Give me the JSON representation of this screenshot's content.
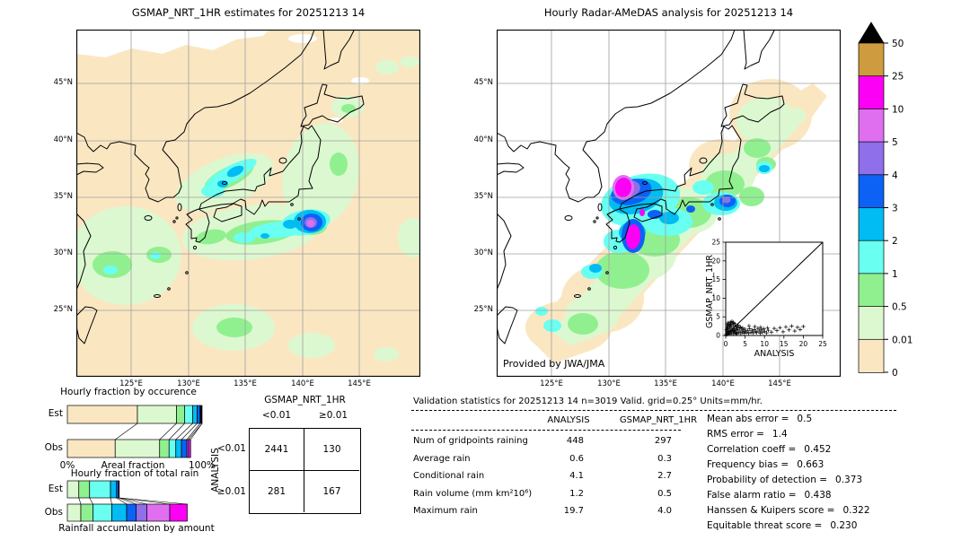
{
  "chart_data": {
    "figure": "GSMAP_NRT_1HR vs Radar-AMeDAS hourly rain validation dashboard",
    "maps": {
      "left": {
        "title": "GSMAP_NRT_1HR estimates for 20251213 14"
      },
      "right": {
        "title": "Hourly Radar-AMeDAS analysis for 20251213 14",
        "credit": "Provided by JWA/JMA"
      },
      "lat_ticks": [
        "45°N",
        "40°N",
        "35°N",
        "30°N",
        "25°N"
      ],
      "lon_ticks": [
        "125°E",
        "130°E",
        "135°E",
        "140°E",
        "145°E"
      ],
      "units": "mm/hr"
    },
    "colorbar": {
      "levels_bottom_to_top": [
        "0",
        "0.01",
        "0.5",
        "1",
        "2",
        "3",
        "4",
        "5",
        "10",
        "25",
        "50"
      ],
      "labels_top_to_bottom": [
        "50",
        "25",
        "10",
        "5",
        "4",
        "3",
        "2",
        "1",
        "0.5",
        "0.01",
        "0"
      ],
      "colors_top_to_bottom": [
        "#CE9C3E",
        "#FB00F5",
        "#DF6FEF",
        "#8F6FEA",
        "#0B62F5",
        "#00BCF2",
        "#69FFF1",
        "#90F090",
        "#DCF8D0",
        "#FAE7C2"
      ],
      "overflow_color": "#000000"
    },
    "occurrence_bars": {
      "type": "bar",
      "title": "Hourly fraction by occurence",
      "rows": [
        "Est",
        "Obs"
      ],
      "x_left_label": "0%",
      "x_center_label": "Areal fraction",
      "x_right_label": "100%",
      "est_segments": [
        {
          "color": "#FAE7C2",
          "frac": 0.52
        },
        {
          "color": "#DCF8D0",
          "frac": 0.29
        },
        {
          "color": "#90F090",
          "frac": 0.06
        },
        {
          "color": "#69FFF1",
          "frac": 0.06
        },
        {
          "color": "#00BCF2",
          "frac": 0.033
        },
        {
          "color": "#0B62F5",
          "frac": 0.022
        },
        {
          "color": "#000000",
          "frac": 0.015
        }
      ],
      "obs_segments": [
        {
          "color": "#FAE7C2",
          "frac": 0.355
        },
        {
          "color": "#DCF8D0",
          "frac": 0.33
        },
        {
          "color": "#90F090",
          "frac": 0.07
        },
        {
          "color": "#69FFF1",
          "frac": 0.05
        },
        {
          "color": "#00BCF2",
          "frac": 0.042
        },
        {
          "color": "#0B62F5",
          "frac": 0.04
        },
        {
          "color": "#8F6FEA",
          "frac": 0.013
        },
        {
          "color": "#FB00F5",
          "frac": 0.015
        }
      ]
    },
    "totalrain_bars": {
      "type": "bar",
      "title": "Hourly fraction of total rain",
      "rows": [
        "Est",
        "Obs"
      ],
      "caption": "Rainfall accumulation by amount",
      "est_segments": [
        {
          "color": "#DCF8D0",
          "frac": 0.085
        },
        {
          "color": "#90F090",
          "frac": 0.08
        },
        {
          "color": "#69FFF1",
          "frac": 0.155
        },
        {
          "color": "#00BCF2",
          "frac": 0.045
        },
        {
          "color": "#0B62F5",
          "frac": 0.015
        },
        {
          "color": "#000000",
          "frac": 0.005
        }
      ],
      "obs_segments": [
        {
          "color": "#DCF8D0",
          "frac": 0.1
        },
        {
          "color": "#90F090",
          "frac": 0.09
        },
        {
          "color": "#69FFF1",
          "frac": 0.14
        },
        {
          "color": "#00BCF2",
          "frac": 0.11
        },
        {
          "color": "#0B62F5",
          "frac": 0.07
        },
        {
          "color": "#8F6FEA",
          "frac": 0.08
        },
        {
          "color": "#DF6FEF",
          "frac": 0.17
        },
        {
          "color": "#FB00F5",
          "frac": 0.13
        }
      ]
    },
    "contingency": {
      "type": "table",
      "col_group": "GSMAP_NRT_1HR",
      "row_group": "ANALYSIS",
      "col_labels": [
        "<0.01",
        "≥0.01"
      ],
      "row_labels": [
        "<0.01",
        "≥0.01"
      ],
      "values": [
        [
          "2441",
          "130"
        ],
        [
          "281",
          "167"
        ]
      ]
    },
    "validation": {
      "type": "table",
      "header": "Validation statistics for 20251213 14  n=3019 Valid. grid=0.25° Units=mm/hr.",
      "col_headers": [
        "ANALYSIS",
        "GSMAP_NRT_1HR"
      ],
      "rows": [
        {
          "label": "Num of gridpoints raining",
          "analysis": "448",
          "gsmap": "297"
        },
        {
          "label": "Average rain",
          "analysis": "0.6",
          "gsmap": "0.3"
        },
        {
          "label": "Conditional rain",
          "analysis": "4.1",
          "gsmap": "2.7"
        },
        {
          "label": "Rain volume (mm km²10⁶)",
          "analysis": "1.2",
          "gsmap": "0.5"
        },
        {
          "label": "Maximum rain",
          "analysis": "19.7",
          "gsmap": "4.0"
        }
      ]
    },
    "skill_scores": [
      {
        "label": "Mean abs error =",
        "value": "0.5"
      },
      {
        "label": "RMS error =",
        "value": "1.4"
      },
      {
        "label": "Correlation coeff =",
        "value": "0.452"
      },
      {
        "label": "Frequency bias =",
        "value": "0.663"
      },
      {
        "label": "Probability of detection =",
        "value": "0.373"
      },
      {
        "label": "False alarm ratio =",
        "value": "0.438"
      },
      {
        "label": "Hanssen & Kuipers score =",
        "value": "0.322"
      },
      {
        "label": "Equitable threat score =",
        "value": "0.230"
      }
    ],
    "scatter": {
      "type": "scatter",
      "xlabel": "ANALYSIS",
      "ylabel": "GSMAP_NRT_1HR",
      "xlim": [
        0,
        25
      ],
      "ylim": [
        0,
        25
      ],
      "ticks": [
        "0",
        "5",
        "10",
        "15",
        "20",
        "25"
      ],
      "marker": "+",
      "points": [
        [
          0.1,
          0.2
        ],
        [
          0.2,
          0.5
        ],
        [
          0.2,
          1.6
        ],
        [
          0.3,
          1.1
        ],
        [
          0.3,
          2.9
        ],
        [
          0.4,
          0.3
        ],
        [
          0.4,
          2.3
        ],
        [
          0.5,
          1.8
        ],
        [
          0.5,
          0.7
        ],
        [
          0.6,
          2.2
        ],
        [
          0.6,
          3.4
        ],
        [
          0.7,
          1.4
        ],
        [
          0.8,
          0.4
        ],
        [
          0.8,
          1.0
        ],
        [
          0.9,
          2.8
        ],
        [
          0.9,
          3.1
        ],
        [
          1.0,
          1.9
        ],
        [
          1.1,
          0.6
        ],
        [
          1.1,
          2.7
        ],
        [
          1.2,
          2.4
        ],
        [
          1.2,
          3.6
        ],
        [
          1.3,
          1.2
        ],
        [
          1.4,
          3.0
        ],
        [
          1.4,
          0.4
        ],
        [
          1.5,
          0.9
        ],
        [
          1.6,
          2.0
        ],
        [
          1.6,
          3.8
        ],
        [
          1.7,
          1.5
        ],
        [
          1.8,
          3.3
        ],
        [
          1.9,
          0.5
        ],
        [
          1.9,
          1.3
        ],
        [
          2.0,
          2.6
        ],
        [
          2.0,
          3.5
        ],
        [
          2.1,
          1.1
        ],
        [
          2.2,
          1.8
        ],
        [
          2.3,
          0.7
        ],
        [
          2.3,
          3.2
        ],
        [
          2.4,
          2.9
        ],
        [
          2.5,
          1.4
        ],
        [
          2.6,
          0.9
        ],
        [
          2.7,
          2.2
        ],
        [
          2.7,
          0.4
        ],
        [
          2.8,
          1.7
        ],
        [
          2.9,
          0.6
        ],
        [
          3.0,
          2.4
        ],
        [
          3.1,
          1.6
        ],
        [
          3.2,
          2.8
        ],
        [
          3.3,
          0.8
        ],
        [
          3.5,
          2.1
        ],
        [
          3.7,
          1.2
        ],
        [
          3.8,
          2.3
        ],
        [
          3.9,
          0.5
        ],
        [
          4.1,
          1.9
        ],
        [
          4.3,
          0.9
        ],
        [
          4.4,
          2.0
        ],
        [
          4.5,
          1.5
        ],
        [
          4.7,
          0.6
        ],
        [
          4.9,
          1.1
        ],
        [
          5.0,
          1.7
        ],
        [
          5.3,
          0.8
        ],
        [
          5.6,
          1.3
        ],
        [
          5.9,
          0.6
        ],
        [
          6.0,
          2.6
        ],
        [
          6.2,
          1.8
        ],
        [
          6.5,
          0.9
        ],
        [
          6.8,
          1.4
        ],
        [
          7.1,
          0.7
        ],
        [
          7.4,
          1.6
        ],
        [
          7.5,
          2.4
        ],
        [
          7.7,
          1.0
        ],
        [
          8.0,
          0.8
        ],
        [
          8.3,
          1.9
        ],
        [
          8.6,
          1.2
        ],
        [
          8.9,
          0.6
        ],
        [
          9.0,
          2.2
        ],
        [
          9.2,
          1.5
        ],
        [
          9.5,
          0.9
        ],
        [
          9.8,
          1.8
        ],
        [
          10.1,
          1.1
        ],
        [
          10.5,
          0.7
        ],
        [
          10.8,
          2.0
        ],
        [
          11.0,
          1.4
        ],
        [
          11.8,
          0.9
        ],
        [
          12.5,
          1.9
        ],
        [
          13.2,
          1.3
        ],
        [
          14.0,
          2.1
        ],
        [
          14.8,
          1.0
        ],
        [
          15.5,
          2.3
        ],
        [
          16.3,
          1.5
        ],
        [
          17.0,
          2.5
        ],
        [
          17.8,
          1.2
        ],
        [
          18.5,
          2.2
        ],
        [
          19.2,
          1.6
        ],
        [
          20.0,
          2.4
        ]
      ]
    }
  }
}
